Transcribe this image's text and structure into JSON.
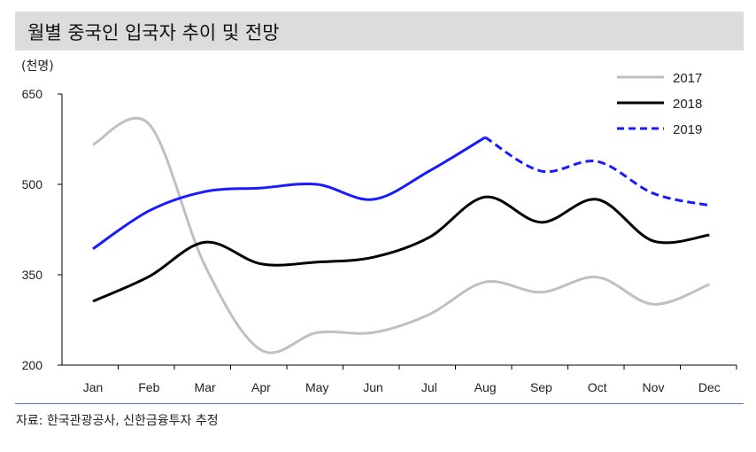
{
  "title": "월별 중국인 입국자 추이 및 전망",
  "unit": "(천명)",
  "source": "자료: 한국관광공사, 신한금융투자 추정",
  "chart_data": {
    "type": "line",
    "title": "월별 중국인 입국자 추이 및 전망",
    "ylabel": "(천명)",
    "ylim": [
      200,
      650
    ],
    "yticks": [
      200,
      350,
      500,
      650
    ],
    "categories": [
      "Jan",
      "Feb",
      "Mar",
      "Apr",
      "May",
      "Jun",
      "Jul",
      "Aug",
      "Sep",
      "Oct",
      "Nov",
      "Dec"
    ],
    "legend_position": "top-right",
    "series": [
      {
        "name": "2017",
        "color": "#c0c0c0",
        "style": "solid",
        "values": [
          566,
          600,
          365,
          225,
          254,
          254,
          284,
          338,
          321,
          346,
          301,
          334
        ]
      },
      {
        "name": "2018",
        "color": "#000000",
        "style": "solid",
        "values": [
          306,
          347,
          404,
          368,
          371,
          379,
          412,
          479,
          437,
          475,
          406,
          416
        ]
      },
      {
        "name": "2019",
        "color": "#1a1aff",
        "style": "solid-then-dashed",
        "dashed_from_index": 7,
        "values": [
          393,
          456,
          488,
          494,
          500,
          475,
          522,
          578,
          522,
          538,
          485,
          465
        ]
      }
    ]
  }
}
